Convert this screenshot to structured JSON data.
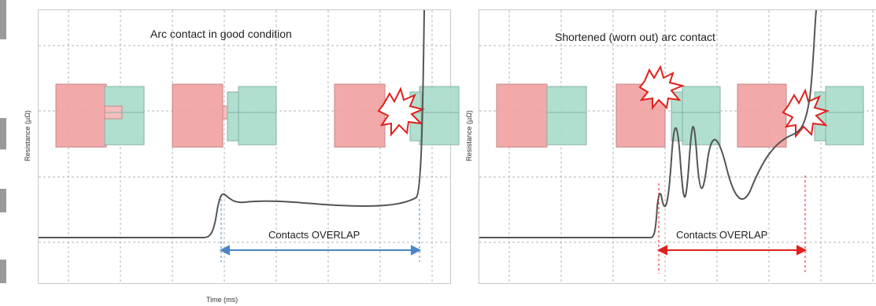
{
  "panels": [
    {
      "title": "Arc contact in good condition",
      "ylabel": "Resistance (µΩ)",
      "xlabel": "Time (ms)",
      "overlap_label": "Contacts OVERLAP",
      "overlap_color": "#4a86c8"
    },
    {
      "title": "Shortened (worn out) arc contact",
      "ylabel": "Resistance (µΩ)",
      "overlap_label": "Contacts OVERLAP",
      "overlap_color": "#e0201c"
    }
  ],
  "colors": {
    "moving_contact": "#f0a0a0",
    "fixed_contact": "#a8dccb",
    "curve": "#555555",
    "spark": "#e0201c"
  }
}
